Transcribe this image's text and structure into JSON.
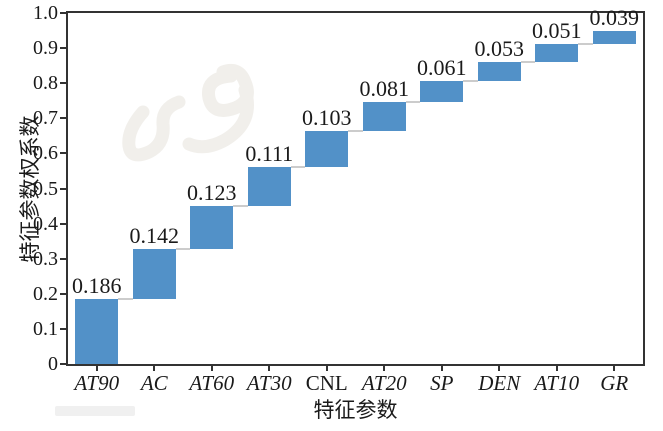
{
  "page": {
    "background": "#ffffff"
  },
  "chart_data": {
    "type": "bar",
    "variant": "waterfall",
    "title": "",
    "xlabel": "特征参数",
    "ylabel": "特征参数权系数",
    "categories": [
      "AT90",
      "AC",
      "AT60",
      "AT30",
      "CNL",
      "AT20",
      "SP",
      "DEN",
      "AT10",
      "GR"
    ],
    "values": [
      0.186,
      0.142,
      0.123,
      0.111,
      0.103,
      0.081,
      0.061,
      0.053,
      0.051,
      0.039
    ],
    "value_labels": [
      "0.186",
      "0.142",
      "0.123",
      "0.111",
      "0.103",
      "0.081",
      "0.061",
      "0.053",
      "0.051",
      "0.039"
    ],
    "cumulative_ends": [
      0.186,
      0.328,
      0.451,
      0.562,
      0.665,
      0.746,
      0.807,
      0.86,
      0.911,
      0.95
    ],
    "ylim": [
      0,
      1.0
    ],
    "yticks": [
      "0",
      "0.1",
      "0.2",
      "0.3",
      "0.4",
      "0.5",
      "0.6",
      "0.7",
      "0.8",
      "0.9",
      "1.0"
    ],
    "grid": false,
    "legend": "none",
    "bar_color": "#5291C8",
    "connector_color": "#cccccc",
    "axis_color": "#333333",
    "text_color": "#1a1a1a",
    "upright_category_labels": [
      "CNL"
    ],
    "category_label_style": "italic"
  },
  "watermark": {
    "present": true,
    "color": "#f1efeb"
  }
}
